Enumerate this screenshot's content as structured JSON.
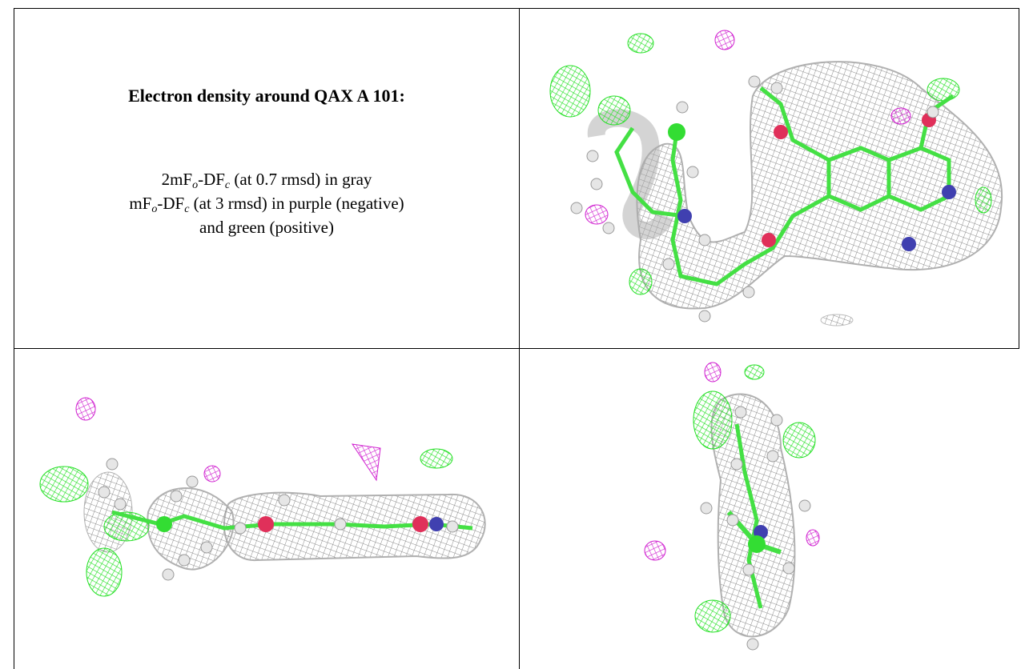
{
  "panel": {
    "title": "Electron density around QAX A 101:",
    "description": [
      [
        "2mF",
        "o",
        "-DF",
        "c",
        " (at 0.7 rmsd) in gray"
      ],
      [
        "mF",
        "o",
        "-DF",
        "c",
        " (at 3 rmsd) in purple (negative)"
      ],
      [
        "and green (positive)"
      ]
    ]
  }
}
